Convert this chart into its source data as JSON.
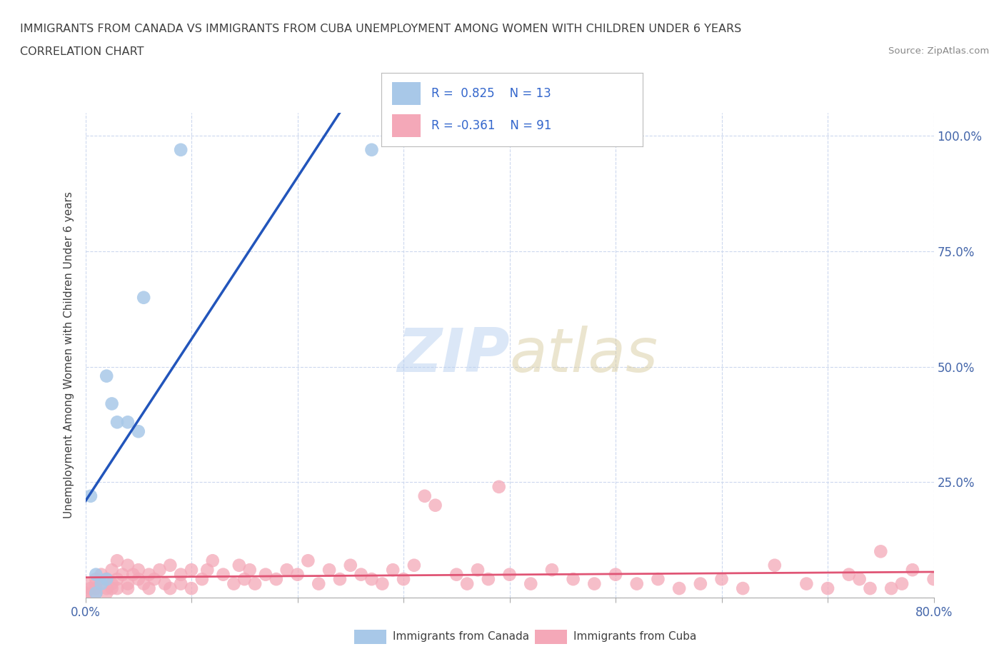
{
  "title_line1": "IMMIGRANTS FROM CANADA VS IMMIGRANTS FROM CUBA UNEMPLOYMENT AMONG WOMEN WITH CHILDREN UNDER 6 YEARS",
  "title_line2": "CORRELATION CHART",
  "source": "Source: ZipAtlas.com",
  "ylabel": "Unemployment Among Women with Children Under 6 years",
  "xlim": [
    0.0,
    0.8
  ],
  "ylim": [
    0.0,
    1.05
  ],
  "xtick_positions": [
    0.0,
    0.1,
    0.2,
    0.3,
    0.4,
    0.5,
    0.6,
    0.7,
    0.8
  ],
  "xticklabels": [
    "0.0%",
    "",
    "",
    "",
    "",
    "",
    "",
    "",
    "80.0%"
  ],
  "ytick_right_positions": [
    0.0,
    0.25,
    0.5,
    0.75,
    1.0
  ],
  "ytick_right_labels": [
    "",
    "25.0%",
    "50.0%",
    "75.0%",
    "100.0%"
  ],
  "canada_R": "0.825",
  "canada_N": "13",
  "cuba_R": "-0.361",
  "cuba_N": "91",
  "canada_color": "#a8c8e8",
  "cuba_color": "#f4a8b8",
  "canada_line_color": "#2255bb",
  "cuba_line_color": "#e05575",
  "legend_canada_label": "Immigrants from Canada",
  "legend_cuba_label": "Immigrants from Cuba",
  "background_color": "#ffffff",
  "grid_color": "#ccd8ee",
  "canada_x": [
    0.005,
    0.01,
    0.01,
    0.015,
    0.02,
    0.02,
    0.025,
    0.03,
    0.04,
    0.05,
    0.055,
    0.09,
    0.27
  ],
  "canada_y": [
    0.22,
    0.01,
    0.05,
    0.03,
    0.48,
    0.04,
    0.42,
    0.38,
    0.38,
    0.36,
    0.65,
    0.97,
    0.97
  ],
  "cuba_x": [
    0.0,
    0.0,
    0.0,
    0.005,
    0.01,
    0.01,
    0.01,
    0.01,
    0.015,
    0.02,
    0.02,
    0.02,
    0.025,
    0.025,
    0.025,
    0.03,
    0.03,
    0.03,
    0.035,
    0.04,
    0.04,
    0.04,
    0.045,
    0.05,
    0.05,
    0.055,
    0.06,
    0.06,
    0.065,
    0.07,
    0.075,
    0.08,
    0.08,
    0.09,
    0.09,
    0.1,
    0.1,
    0.11,
    0.115,
    0.12,
    0.13,
    0.14,
    0.145,
    0.15,
    0.155,
    0.16,
    0.17,
    0.18,
    0.19,
    0.2,
    0.21,
    0.22,
    0.23,
    0.24,
    0.25,
    0.26,
    0.27,
    0.28,
    0.29,
    0.3,
    0.31,
    0.32,
    0.33,
    0.35,
    0.36,
    0.37,
    0.38,
    0.39,
    0.4,
    0.42,
    0.44,
    0.46,
    0.48,
    0.5,
    0.52,
    0.54,
    0.56,
    0.58,
    0.6,
    0.62,
    0.65,
    0.68,
    0.7,
    0.72,
    0.73,
    0.74,
    0.75,
    0.76,
    0.77,
    0.78,
    0.8
  ],
  "cuba_y": [
    0.03,
    0.01,
    0.005,
    0.02,
    0.04,
    0.02,
    0.01,
    0.03,
    0.05,
    0.02,
    0.04,
    0.01,
    0.03,
    0.06,
    0.02,
    0.04,
    0.08,
    0.02,
    0.05,
    0.03,
    0.07,
    0.02,
    0.05,
    0.04,
    0.06,
    0.03,
    0.05,
    0.02,
    0.04,
    0.06,
    0.03,
    0.07,
    0.02,
    0.05,
    0.03,
    0.06,
    0.02,
    0.04,
    0.06,
    0.08,
    0.05,
    0.03,
    0.07,
    0.04,
    0.06,
    0.03,
    0.05,
    0.04,
    0.06,
    0.05,
    0.08,
    0.03,
    0.06,
    0.04,
    0.07,
    0.05,
    0.04,
    0.03,
    0.06,
    0.04,
    0.07,
    0.22,
    0.2,
    0.05,
    0.03,
    0.06,
    0.04,
    0.24,
    0.05,
    0.03,
    0.06,
    0.04,
    0.03,
    0.05,
    0.03,
    0.04,
    0.02,
    0.03,
    0.04,
    0.02,
    0.07,
    0.03,
    0.02,
    0.05,
    0.04,
    0.02,
    0.1,
    0.02,
    0.03,
    0.06,
    0.04
  ]
}
